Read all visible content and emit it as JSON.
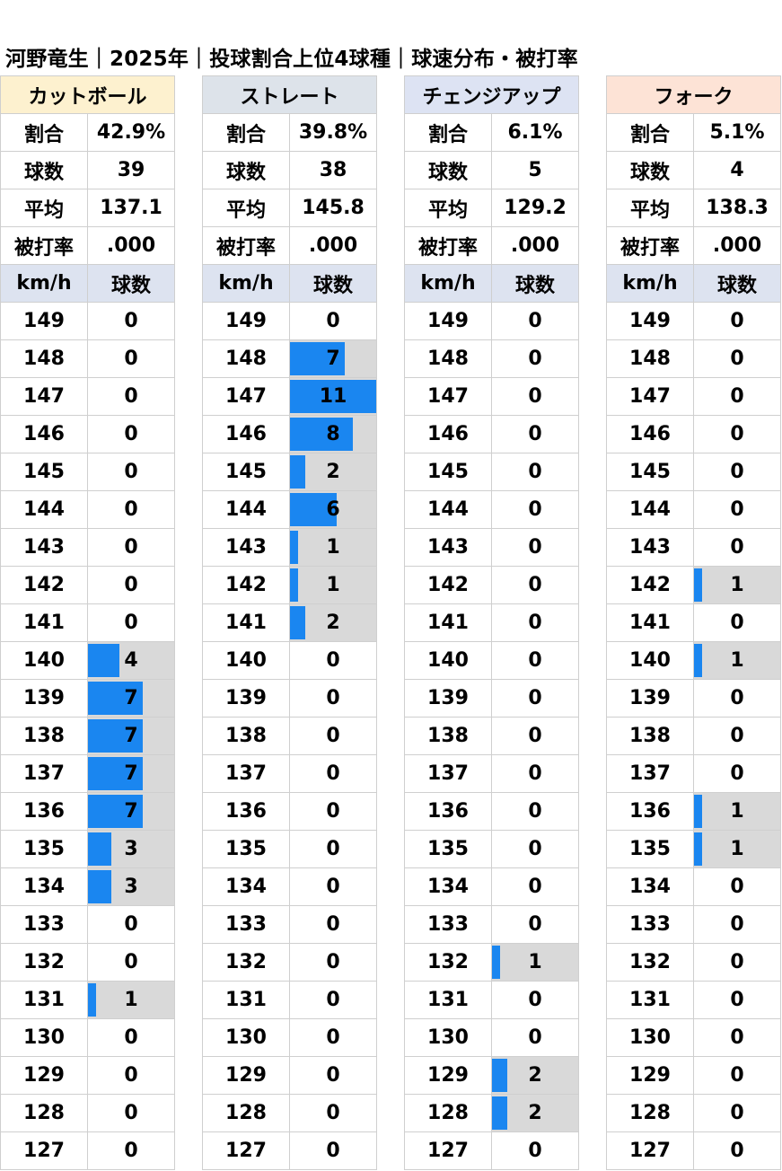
{
  "title": "河野竜生｜2025年｜投球割合上位4球種｜球速分布・被打率",
  "labels": {
    "ratio": "割合",
    "count": "球数",
    "avg": "平均",
    "ba": "被打率",
    "speed_col": "km/h",
    "count_col": "球数"
  },
  "colors": {
    "bar": "#1a86f0",
    "bar_background": "#d9d9d9"
  },
  "chart_data": {
    "type": "table",
    "speeds": [
      "149",
      "148",
      "147",
      "146",
      "145",
      "144",
      "143",
      "142",
      "141",
      "140",
      "139",
      "138",
      "137",
      "136",
      "135",
      "134",
      "133",
      "132",
      "131",
      "130",
      "129",
      "128",
      "127"
    ],
    "bar_max": 11,
    "pitches": [
      {
        "name": "カットボール",
        "header_color": "#fdf1cf",
        "ratio": "42.9%",
        "count": "39",
        "avg": "137.1",
        "ba": ".000",
        "counts": [
          0,
          0,
          0,
          0,
          0,
          0,
          0,
          0,
          0,
          4,
          7,
          7,
          7,
          7,
          3,
          3,
          0,
          0,
          1,
          0,
          0,
          0,
          0
        ]
      },
      {
        "name": "ストレート",
        "header_color": "#dde3ea",
        "ratio": "39.8%",
        "count": "38",
        "avg": "145.8",
        "ba": ".000",
        "counts": [
          0,
          7,
          11,
          8,
          2,
          6,
          1,
          1,
          2,
          0,
          0,
          0,
          0,
          0,
          0,
          0,
          0,
          0,
          0,
          0,
          0,
          0,
          0
        ]
      },
      {
        "name": "チェンジアップ",
        "header_color": "#dde3f3",
        "ratio": "6.1%",
        "count": "5",
        "avg": "129.2",
        "ba": ".000",
        "counts": [
          0,
          0,
          0,
          0,
          0,
          0,
          0,
          0,
          0,
          0,
          0,
          0,
          0,
          0,
          0,
          0,
          0,
          1,
          0,
          0,
          2,
          2,
          0
        ]
      },
      {
        "name": "フォーク",
        "header_color": "#fde3d6",
        "ratio": "5.1%",
        "count": "4",
        "avg": "138.3",
        "ba": ".000",
        "counts": [
          0,
          0,
          0,
          0,
          0,
          0,
          0,
          1,
          0,
          1,
          0,
          0,
          0,
          1,
          1,
          0,
          0,
          0,
          0,
          0,
          0,
          0,
          0
        ]
      }
    ]
  }
}
